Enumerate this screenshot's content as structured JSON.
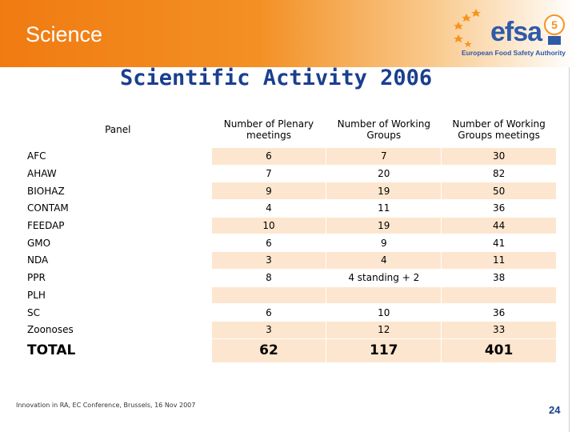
{
  "banner": {
    "title": "Science"
  },
  "logo": {
    "word": "efsa",
    "subtitle": "European Food Safety Authority",
    "badge": "5"
  },
  "slide": {
    "title": "Scientific Activity 2006"
  },
  "table": {
    "headers": [
      "Panel",
      "Number of Plenary meetings",
      "Number of Working Groups",
      "Number of Working Groups meetings"
    ],
    "rows": [
      {
        "panel": "AFC",
        "plenary": "6",
        "wg": "7",
        "wg_meetings": "30"
      },
      {
        "panel": "AHAW",
        "plenary": "7",
        "wg": "20",
        "wg_meetings": "82"
      },
      {
        "panel": "BIOHAZ",
        "plenary": "9",
        "wg": "19",
        "wg_meetings": "50"
      },
      {
        "panel": "CONTAM",
        "plenary": "4",
        "wg": "11",
        "wg_meetings": "36"
      },
      {
        "panel": "FEEDAP",
        "plenary": "10",
        "wg": "19",
        "wg_meetings": "44"
      },
      {
        "panel": "GMO",
        "plenary": "6",
        "wg": "9",
        "wg_meetings": "41"
      },
      {
        "panel": "NDA",
        "plenary": "3",
        "wg": "4",
        "wg_meetings": "11"
      },
      {
        "panel": "PPR",
        "plenary": "8",
        "wg": "4 standing + 2",
        "wg_meetings": "38"
      },
      {
        "panel": "PLH",
        "plenary": "",
        "wg": "",
        "wg_meetings": ""
      },
      {
        "panel": "SC",
        "plenary": "6",
        "wg": "10",
        "wg_meetings": "36"
      },
      {
        "panel": "Zoonoses",
        "plenary": "3",
        "wg": "12",
        "wg_meetings": "33"
      }
    ],
    "total": {
      "label": "TOTAL",
      "plenary": "62",
      "wg": "117",
      "wg_meetings": "401"
    }
  },
  "footer": {
    "text": "Innovation in RA, EC Conference, Brussels, 16 Nov 2007"
  },
  "page": {
    "number": "24"
  },
  "colors": {
    "banner": "#f07b12",
    "title": "#1a3f8f",
    "cell_alt": "#fde6cf"
  }
}
